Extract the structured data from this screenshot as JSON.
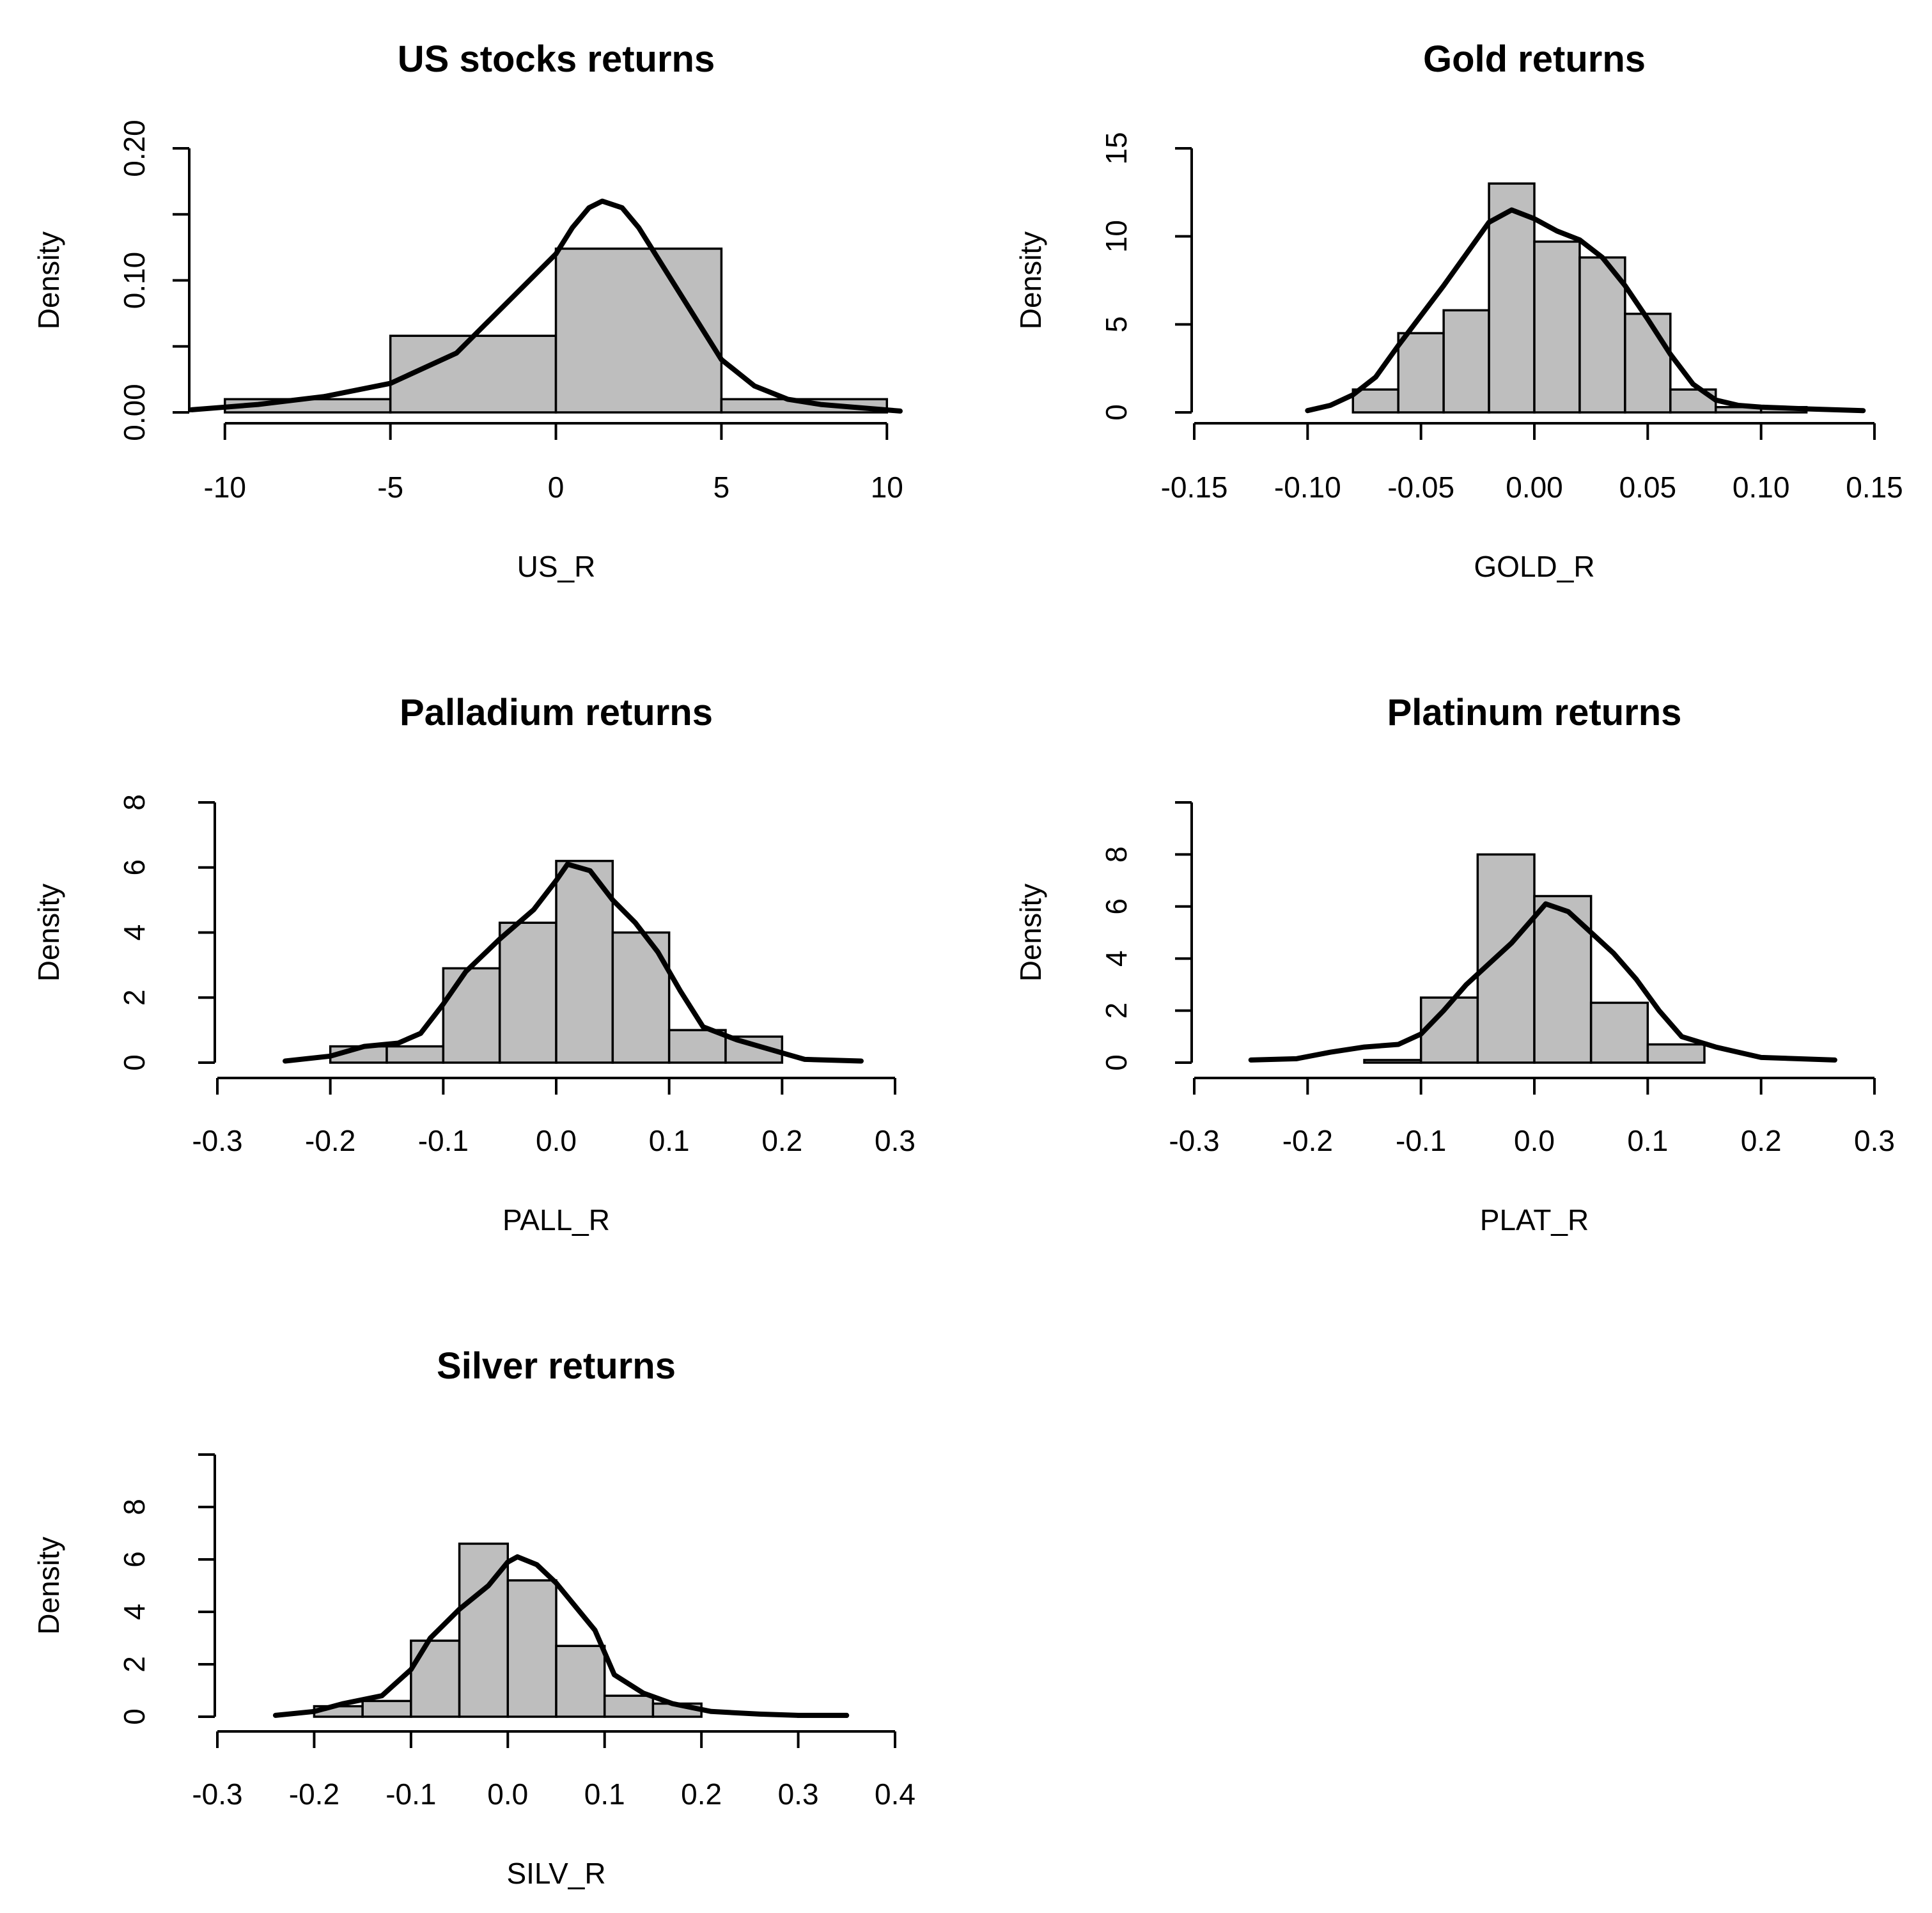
{
  "chart_data": [
    {
      "type": "histogram",
      "title": "US stocks returns",
      "xlabel": "US_R",
      "ylabel": "Density",
      "xlim": [
        -11,
        10.4
      ],
      "ylim": [
        0,
        0.2
      ],
      "x_axis_range": [
        -10,
        10
      ],
      "xticks": [
        -10,
        -5,
        0,
        5,
        10
      ],
      "xtick_labels": [
        "-10",
        "-5",
        "0",
        "5",
        "10"
      ],
      "yticks": [
        0,
        0.05,
        0.1,
        0.15,
        0.2
      ],
      "ytick_labels": [
        "0.00",
        "",
        "0.10",
        "",
        "0.20"
      ],
      "bins": [
        {
          "x0": -10,
          "x1": -5,
          "value": 0.01
        },
        {
          "x0": -5,
          "x1": 0,
          "value": 0.058
        },
        {
          "x0": 0,
          "x1": 5,
          "value": 0.124
        },
        {
          "x0": 5,
          "x1": 10,
          "value": 0.01
        }
      ],
      "density": {
        "x": [
          -11,
          -9,
          -7,
          -5,
          -3,
          -2,
          -1,
          0,
          0.5,
          1,
          1.4,
          2,
          2.5,
          3,
          4,
          5,
          6,
          7,
          8,
          10.4
        ],
        "y": [
          0.002,
          0.006,
          0.012,
          0.022,
          0.045,
          0.07,
          0.095,
          0.12,
          0.14,
          0.155,
          0.16,
          0.155,
          0.14,
          0.12,
          0.08,
          0.04,
          0.02,
          0.01,
          0.006,
          0.001
        ]
      }
    },
    {
      "type": "histogram",
      "title": "Gold returns",
      "xlabel": "GOLD_R",
      "ylabel": "Density",
      "xlim": [
        -0.15,
        0.15
      ],
      "ylim": [
        0,
        15
      ],
      "x_axis_range": [
        -0.15,
        0.15
      ],
      "xticks": [
        -0.15,
        -0.1,
        -0.05,
        0,
        0.05,
        0.1,
        0.15
      ],
      "xtick_labels": [
        "-0.15",
        "-0.10",
        "-0.05",
        "0.00",
        "0.05",
        "0.10",
        "0.15"
      ],
      "yticks": [
        0,
        5,
        10,
        15
      ],
      "ytick_labels": [
        "0",
        "5",
        "10",
        "15"
      ],
      "bins": [
        {
          "x0": -0.08,
          "x1": -0.06,
          "value": 1.3
        },
        {
          "x0": -0.06,
          "x1": -0.04,
          "value": 4.5
        },
        {
          "x0": -0.04,
          "x1": -0.02,
          "value": 5.8
        },
        {
          "x0": -0.02,
          "x1": 0.0,
          "value": 13.0
        },
        {
          "x0": 0.0,
          "x1": 0.02,
          "value": 9.7
        },
        {
          "x0": 0.02,
          "x1": 0.04,
          "value": 8.8
        },
        {
          "x0": 0.04,
          "x1": 0.06,
          "value": 5.6
        },
        {
          "x0": 0.06,
          "x1": 0.08,
          "value": 1.3
        },
        {
          "x0": 0.08,
          "x1": 0.1,
          "value": 0.3
        },
        {
          "x0": 0.1,
          "x1": 0.12,
          "value": 0.3
        }
      ],
      "density": {
        "x": [
          -0.1,
          -0.09,
          -0.08,
          -0.07,
          -0.06,
          -0.05,
          -0.04,
          -0.03,
          -0.02,
          -0.01,
          0.0,
          0.01,
          0.02,
          0.03,
          0.04,
          0.05,
          0.06,
          0.07,
          0.08,
          0.09,
          0.1,
          0.12,
          0.145
        ],
        "y": [
          0.1,
          0.4,
          1.0,
          2.0,
          3.8,
          5.5,
          7.2,
          9.0,
          10.8,
          11.5,
          11.0,
          10.3,
          9.8,
          8.8,
          7.2,
          5.3,
          3.3,
          1.6,
          0.7,
          0.4,
          0.3,
          0.2,
          0.1
        ]
      }
    },
    {
      "type": "histogram",
      "title": "Palladium returns",
      "xlabel": "PALL_R",
      "ylabel": "Density",
      "xlim": [
        -0.3,
        0.3
      ],
      "ylim": [
        0,
        8
      ],
      "x_axis_range": [
        -0.3,
        0.3
      ],
      "xticks": [
        -0.3,
        -0.2,
        -0.1,
        0,
        0.1,
        0.2,
        0.3
      ],
      "xtick_labels": [
        "-0.3",
        "-0.2",
        "-0.1",
        "0.0",
        "0.1",
        "0.2",
        "0.3"
      ],
      "yticks": [
        0,
        2,
        4,
        6,
        8
      ],
      "ytick_labels": [
        "0",
        "2",
        "4",
        "6",
        "8"
      ],
      "bins": [
        {
          "x0": -0.2,
          "x1": -0.15,
          "value": 0.5
        },
        {
          "x0": -0.15,
          "x1": -0.1,
          "value": 0.5
        },
        {
          "x0": -0.1,
          "x1": -0.05,
          "value": 2.9
        },
        {
          "x0": -0.05,
          "x1": 0.0,
          "value": 4.3
        },
        {
          "x0": 0.0,
          "x1": 0.05,
          "value": 6.2
        },
        {
          "x0": 0.05,
          "x1": 0.1,
          "value": 4.0
        },
        {
          "x0": 0.1,
          "x1": 0.15,
          "value": 1.0
        },
        {
          "x0": 0.15,
          "x1": 0.2,
          "value": 0.8
        }
      ],
      "density": {
        "x": [
          -0.24,
          -0.2,
          -0.17,
          -0.14,
          -0.12,
          -0.1,
          -0.08,
          -0.05,
          -0.02,
          0.0,
          0.01,
          0.03,
          0.05,
          0.07,
          0.09,
          0.11,
          0.13,
          0.16,
          0.19,
          0.22,
          0.27
        ],
        "y": [
          0.05,
          0.2,
          0.5,
          0.6,
          0.9,
          1.8,
          2.8,
          3.8,
          4.7,
          5.6,
          6.1,
          5.9,
          5.0,
          4.3,
          3.4,
          2.2,
          1.1,
          0.7,
          0.4,
          0.1,
          0.05
        ]
      }
    },
    {
      "type": "histogram",
      "title": "Platinum returns",
      "xlabel": "PLAT_R",
      "ylabel": "Density",
      "xlim": [
        -0.3,
        0.3
      ],
      "ylim": [
        0,
        10
      ],
      "x_axis_range": [
        -0.3,
        0.3
      ],
      "xticks": [
        -0.3,
        -0.2,
        -0.1,
        0,
        0.1,
        0.2,
        0.3
      ],
      "xtick_labels": [
        "-0.3",
        "-0.2",
        "-0.1",
        "0.0",
        "0.1",
        "0.2",
        "0.3"
      ],
      "yticks": [
        0,
        2,
        4,
        6,
        8,
        10
      ],
      "ytick_labels": [
        "0",
        "2",
        "4",
        "6",
        "8",
        ""
      ],
      "bins": [
        {
          "x0": -0.15,
          "x1": -0.1,
          "value": 0.1
        },
        {
          "x0": -0.1,
          "x1": -0.05,
          "value": 2.5
        },
        {
          "x0": -0.05,
          "x1": 0.0,
          "value": 8.0
        },
        {
          "x0": 0.0,
          "x1": 0.05,
          "value": 6.4
        },
        {
          "x0": 0.05,
          "x1": 0.1,
          "value": 2.3
        },
        {
          "x0": 0.1,
          "x1": 0.15,
          "value": 0.7
        }
      ],
      "density": {
        "x": [
          -0.25,
          -0.21,
          -0.18,
          -0.15,
          -0.12,
          -0.1,
          -0.08,
          -0.06,
          -0.04,
          -0.02,
          0.0,
          0.01,
          0.03,
          0.05,
          0.07,
          0.09,
          0.11,
          0.13,
          0.16,
          0.2,
          0.265
        ],
        "y": [
          0.1,
          0.15,
          0.4,
          0.6,
          0.7,
          1.1,
          2.0,
          3.0,
          3.8,
          4.6,
          5.6,
          6.1,
          5.8,
          5.0,
          4.2,
          3.2,
          2.0,
          1.0,
          0.6,
          0.2,
          0.1
        ]
      }
    },
    {
      "type": "histogram",
      "title": "Silver returns",
      "xlabel": "SILV_R",
      "ylabel": "Density",
      "xlim": [
        -0.3,
        0.4
      ],
      "ylim": [
        0,
        10
      ],
      "x_axis_range": [
        -0.3,
        0.4
      ],
      "xticks": [
        -0.3,
        -0.2,
        -0.1,
        0,
        0.1,
        0.2,
        0.3,
        0.4
      ],
      "xtick_labels": [
        "-0.3",
        "-0.2",
        "-0.1",
        "0.0",
        "0.1",
        "0.2",
        "0.3",
        "0.4"
      ],
      "yticks": [
        0,
        2,
        4,
        6,
        8,
        10
      ],
      "ytick_labels": [
        "0",
        "2",
        "4",
        "6",
        "8",
        ""
      ],
      "bins": [
        {
          "x0": -0.2,
          "x1": -0.15,
          "value": 0.4
        },
        {
          "x0": -0.15,
          "x1": -0.1,
          "value": 0.6
        },
        {
          "x0": -0.1,
          "x1": -0.05,
          "value": 2.9
        },
        {
          "x0": -0.05,
          "x1": 0.0,
          "value": 6.6
        },
        {
          "x0": 0.0,
          "x1": 0.05,
          "value": 5.2
        },
        {
          "x0": 0.05,
          "x1": 0.1,
          "value": 2.7
        },
        {
          "x0": 0.1,
          "x1": 0.15,
          "value": 0.8
        },
        {
          "x0": 0.15,
          "x1": 0.2,
          "value": 0.5
        },
        {
          "x0": 0.3,
          "x1": 0.35,
          "value": 0.1
        }
      ],
      "density": {
        "x": [
          -0.24,
          -0.2,
          -0.17,
          -0.13,
          -0.1,
          -0.08,
          -0.05,
          -0.02,
          0.0,
          0.01,
          0.03,
          0.05,
          0.07,
          0.09,
          0.11,
          0.14,
          0.17,
          0.21,
          0.26,
          0.3,
          0.35
        ],
        "y": [
          0.05,
          0.2,
          0.5,
          0.8,
          1.8,
          3.0,
          4.1,
          5.0,
          5.9,
          6.1,
          5.8,
          5.1,
          4.2,
          3.3,
          1.6,
          0.9,
          0.5,
          0.2,
          0.1,
          0.05,
          0.05
        ]
      }
    }
  ]
}
